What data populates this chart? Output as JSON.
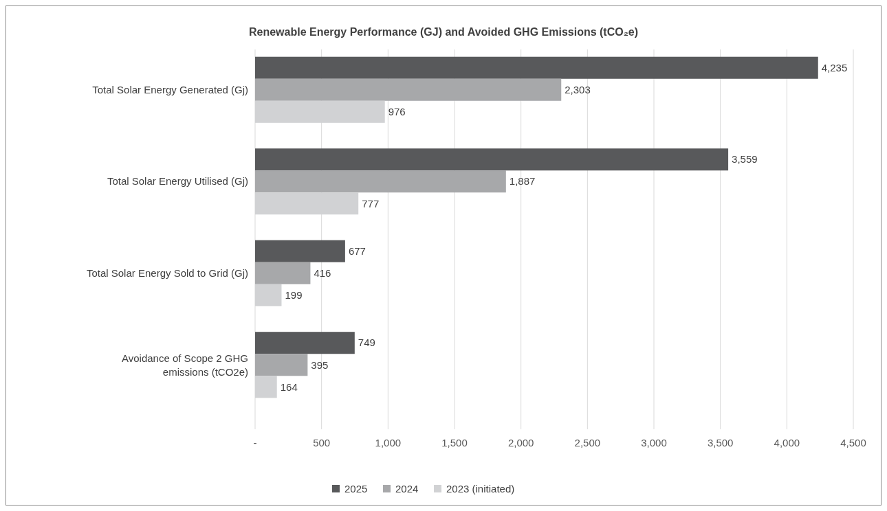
{
  "chart_data": {
    "type": "bar",
    "orientation": "horizontal",
    "title": "Renewable Energy Performance (GJ) and Avoided GHG Emissions (tCO₂e)",
    "categories": [
      "Total Solar Energy Generated (Gj)",
      "Total Solar Energy Utilised (Gj)",
      "Total Solar Energy Sold to Grid (Gj)",
      "Avoidance of Scope 2 GHG emissions (tCO2e)"
    ],
    "series": [
      {
        "name": "2025",
        "color": "#58595b",
        "values": [
          4235,
          3559,
          677,
          749
        ],
        "value_labels": [
          "4,235",
          "3,559",
          "677",
          "749"
        ]
      },
      {
        "name": "2024",
        "color": "#a7a8aa",
        "values": [
          2303,
          1887,
          416,
          395
        ],
        "value_labels": [
          "2,303",
          "1,887",
          "416",
          "395"
        ]
      },
      {
        "name": "2023 (initiated)",
        "color": "#d1d2d4",
        "values": [
          976,
          777,
          199,
          164
        ],
        "value_labels": [
          "976",
          "777",
          "199",
          "164"
        ]
      }
    ],
    "xlim": [
      0,
      4500
    ],
    "xticks": [
      {
        "value": 0,
        "label": "-"
      },
      {
        "value": 500,
        "label": "500"
      },
      {
        "value": 1000,
        "label": "1,000"
      },
      {
        "value": 1500,
        "label": "1,500"
      },
      {
        "value": 2000,
        "label": "2,000"
      },
      {
        "value": 2500,
        "label": "2,500"
      },
      {
        "value": 3000,
        "label": "3,000"
      },
      {
        "value": 3500,
        "label": "3,500"
      },
      {
        "value": 4000,
        "label": "4,000"
      },
      {
        "value": 4500,
        "label": "4,500"
      }
    ],
    "grid": "x",
    "legend": "bottom"
  }
}
